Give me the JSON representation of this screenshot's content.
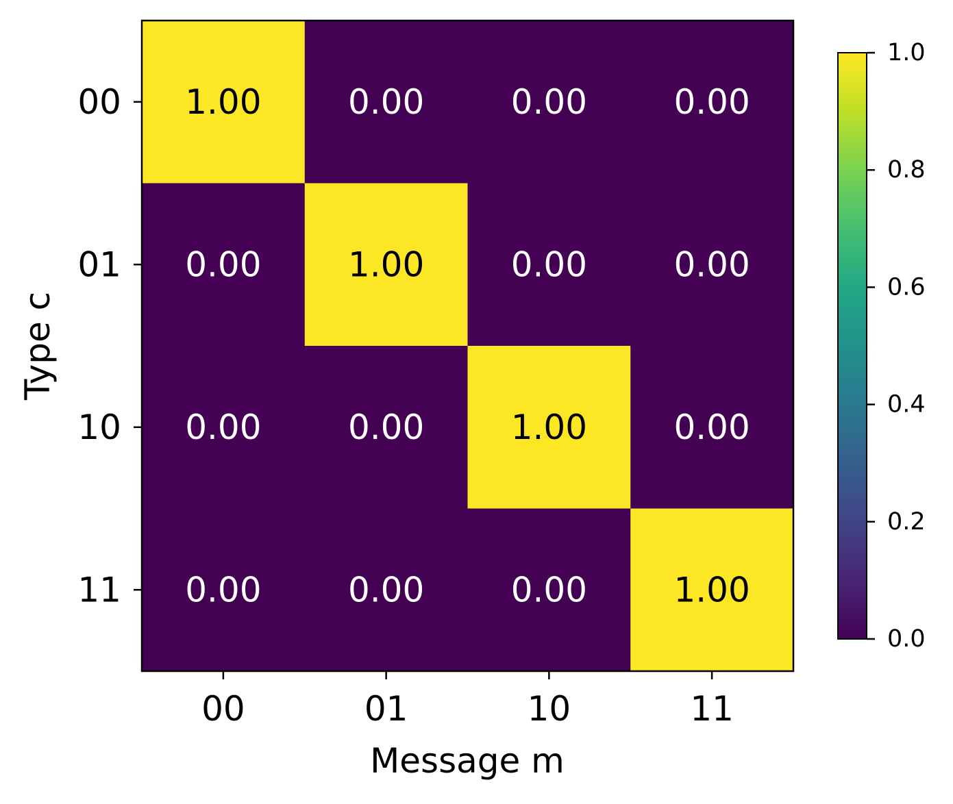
{
  "chart_data": {
    "type": "heatmap",
    "title": "",
    "xlabel": "Message m",
    "ylabel": "Type c",
    "x_categories": [
      "00",
      "01",
      "10",
      "11"
    ],
    "y_categories": [
      "00",
      "01",
      "10",
      "11"
    ],
    "values": [
      [
        1.0,
        0.0,
        0.0,
        0.0
      ],
      [
        0.0,
        1.0,
        0.0,
        0.0
      ],
      [
        0.0,
        0.0,
        1.0,
        0.0
      ],
      [
        0.0,
        0.0,
        0.0,
        1.0
      ]
    ],
    "cell_labels": [
      [
        "1.00",
        "0.00",
        "0.00",
        "0.00"
      ],
      [
        "0.00",
        "1.00",
        "0.00",
        "0.00"
      ],
      [
        "0.00",
        "0.00",
        "1.00",
        "0.00"
      ],
      [
        "0.00",
        "0.00",
        "0.00",
        "1.00"
      ]
    ],
    "colormap": "viridis",
    "colorbar": {
      "range": [
        0.0,
        1.0
      ],
      "ticks": [
        0.0,
        0.2,
        0.4,
        0.6,
        0.8,
        1.0
      ],
      "tick_labels": [
        "0.0",
        "0.2",
        "0.4",
        "0.6",
        "0.8",
        "1.0"
      ]
    },
    "colors": {
      "low": "#440154",
      "high": "#fde725",
      "text_on_low": "#ffffff",
      "text_on_high": "#000000"
    }
  }
}
